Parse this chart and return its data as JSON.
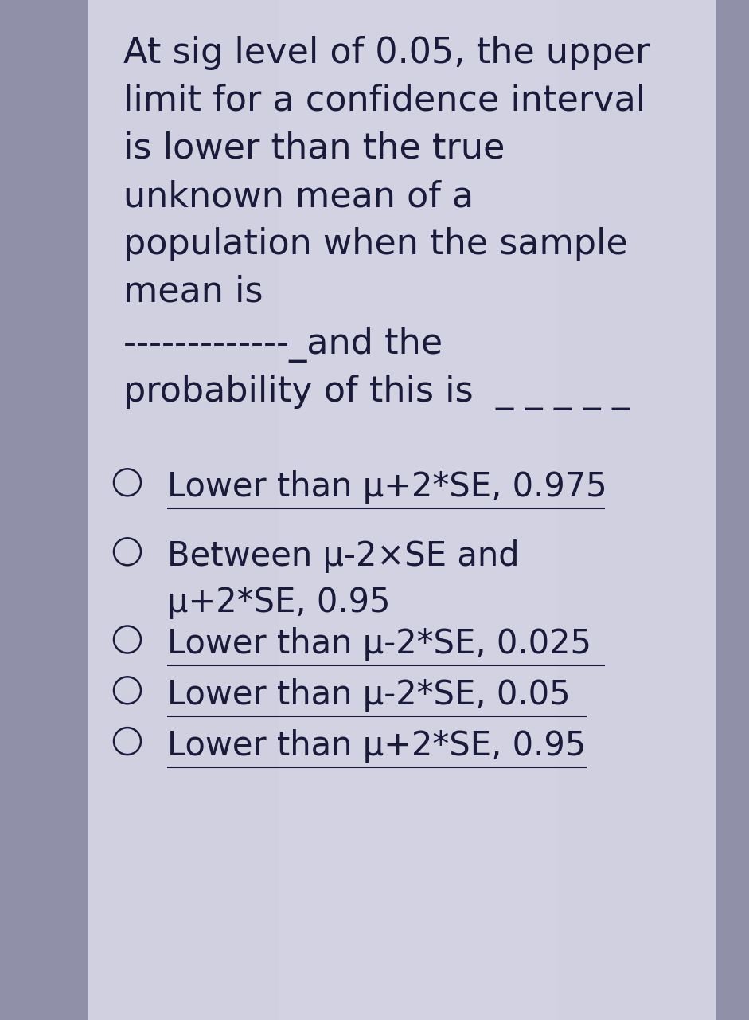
{
  "bg_outer": "#9090a8",
  "bg_inner": "#d0d0e0",
  "text_color": "#1a1a3a",
  "title_lines": [
    "At sig level of 0.05, the upper",
    "limit for a confidence interval",
    "is lower than the true",
    "unknown mean of a",
    "population when the sample",
    "mean is"
  ],
  "dash_line": "- - - - - - - - - - - - _and the",
  "prob_line_prefix": "probability of this is",
  "prob_dashes": "_ _ _ _ _",
  "options": [
    {
      "line1": "Lower than μ+2*SE, 0.975",
      "line2": "",
      "underline1": true,
      "underline2": false
    },
    {
      "line1": "Between μ-2×SE and",
      "line2": "μ+2*SE, 0.95",
      "underline1": false,
      "underline2": false
    },
    {
      "line1": "Lower than μ-2*SE, 0.025",
      "line2": "",
      "underline1": true,
      "underline2": false
    },
    {
      "line1": "Lower than μ-2*SE, 0.05",
      "line2": "",
      "underline1": true,
      "underline2": false
    },
    {
      "line1": "Lower than μ+2*SE, 0.95",
      "line2": "",
      "underline1": true,
      "underline2": false
    }
  ],
  "title_fontsize": 32,
  "option_fontsize": 30,
  "fig_width": 9.41,
  "fig_height": 12.8,
  "dpi": 100
}
